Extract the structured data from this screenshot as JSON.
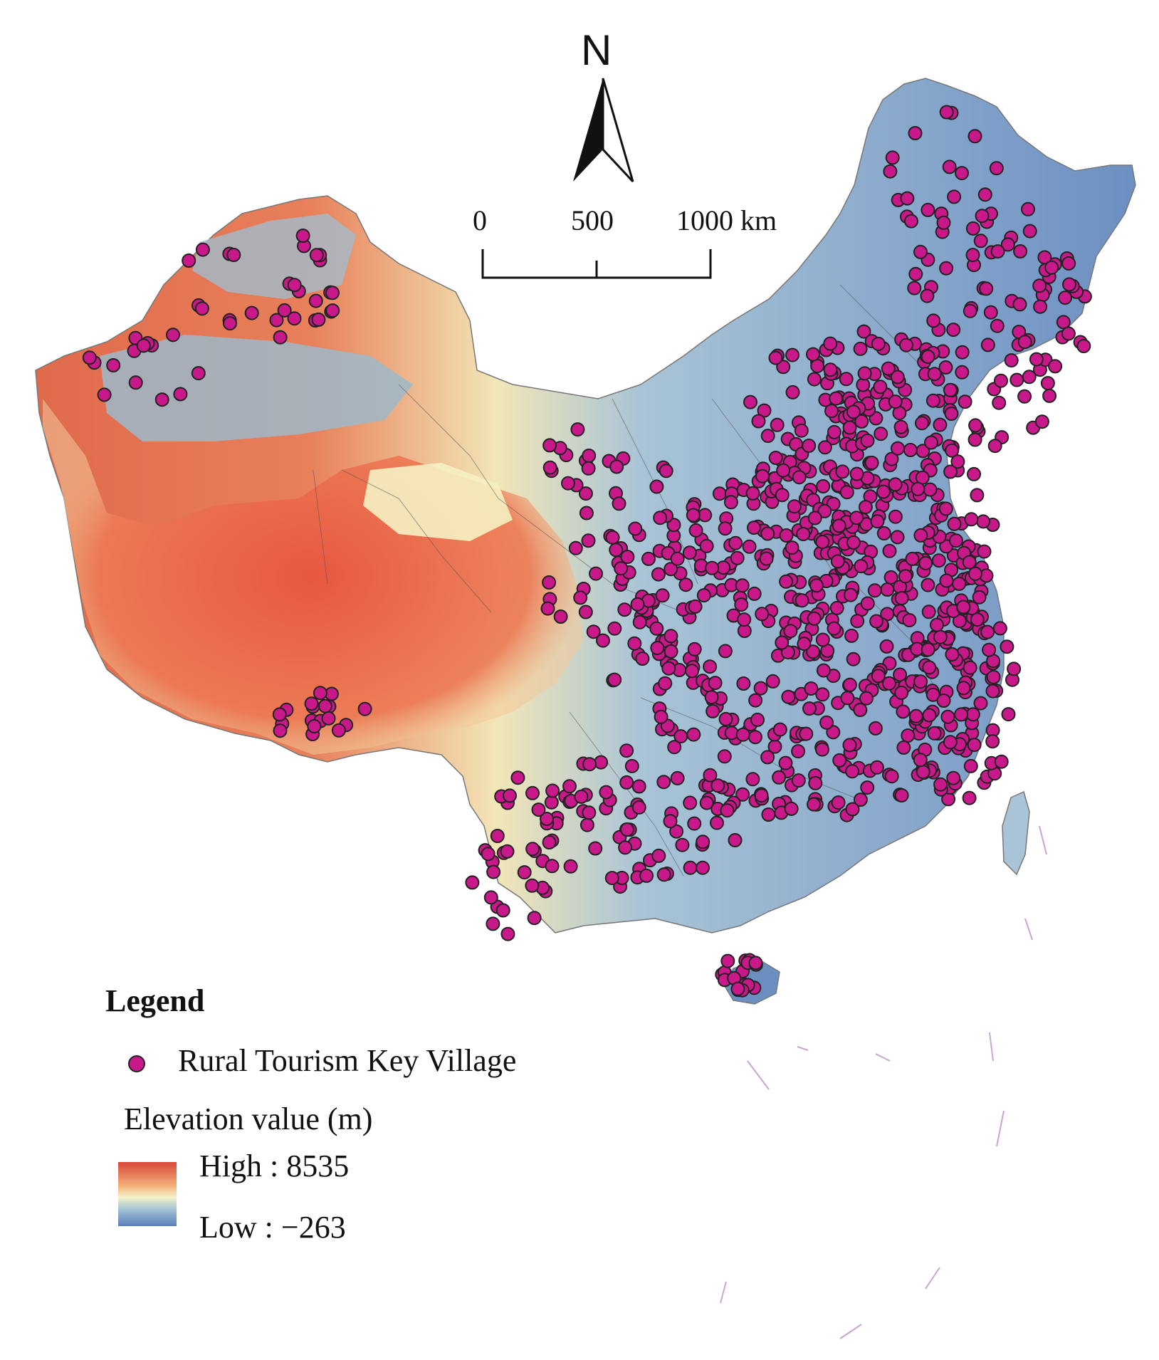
{
  "legend": {
    "title": "Legend",
    "point_label": "Rural Tourism Key Village",
    "elevation_title": "Elevation value (m)",
    "high_label": "High : 8535",
    "low_label": "Low : −263"
  },
  "north_arrow": {
    "label": "N"
  },
  "scale_bar": {
    "labels": [
      "0",
      "500",
      "1000 km"
    ]
  },
  "colors": {
    "village_point": "#c8188a",
    "elevation_high": "#d9473a",
    "elevation_mid": "#f5f3c8",
    "elevation_low": "#5a7fb8"
  }
}
